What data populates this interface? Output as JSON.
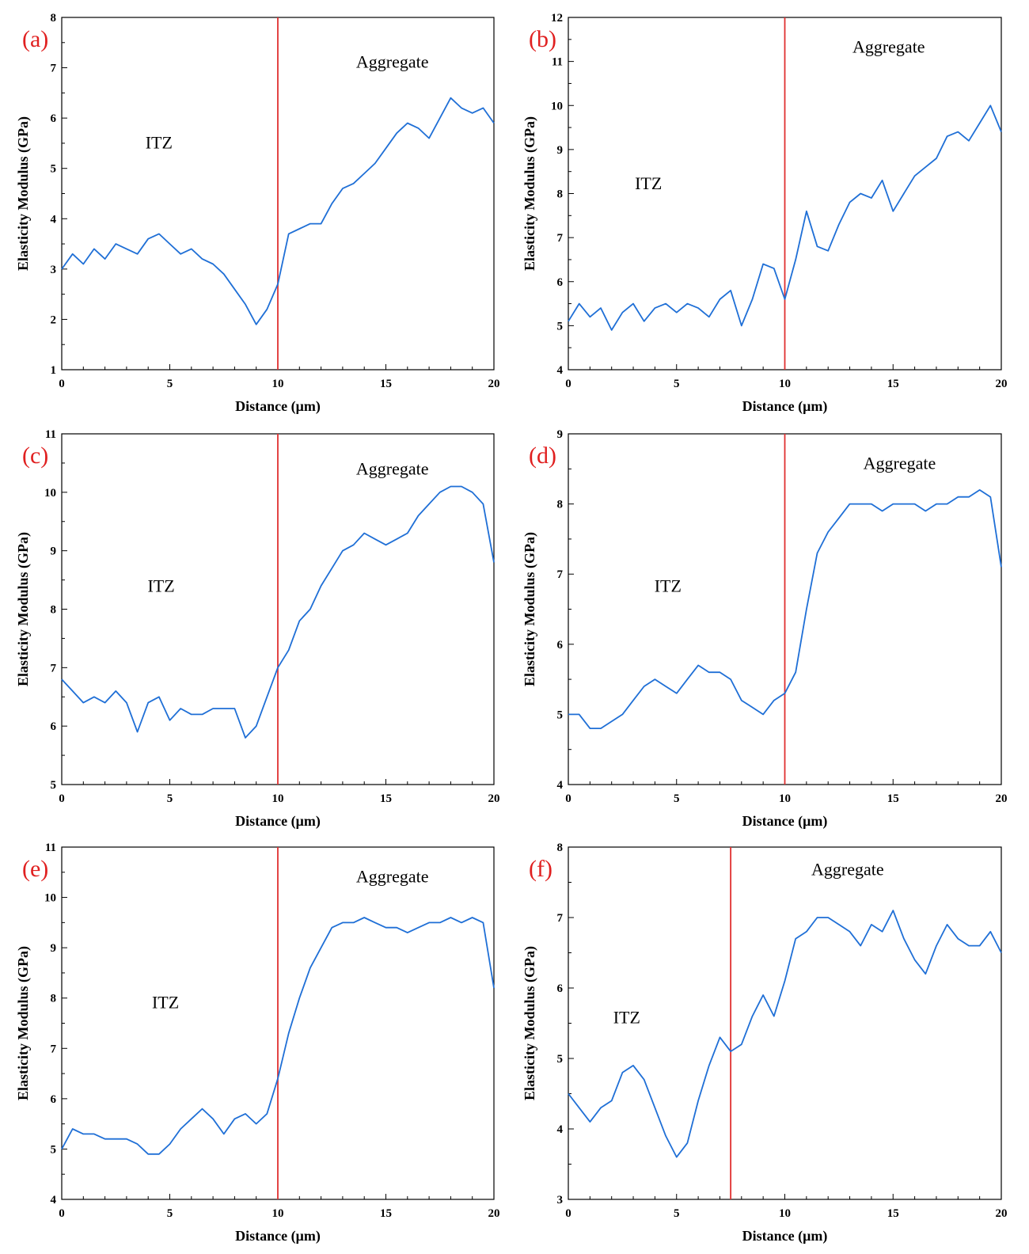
{
  "figure": {
    "line_color": "#1f6fd6",
    "boundary_color": "#e03030",
    "panel_label_color": "#e02020",
    "axis_color": "#000000"
  },
  "chart_data": [
    {
      "type": "line",
      "panel_label": "(a)",
      "xlabel": "Distance (μm)",
      "ylabel": "Elasticity Modulus (GPa)",
      "xlim": [
        0,
        20
      ],
      "ylim": [
        1,
        8
      ],
      "xticks": [
        0,
        5,
        10,
        15,
        20
      ],
      "yticks": [
        1,
        2,
        3,
        4,
        5,
        6,
        7,
        8
      ],
      "boundary_x": 10,
      "annotations": [
        {
          "text": "ITZ",
          "x": 4.5,
          "y": 5.4
        },
        {
          "text": "Aggregate",
          "x": 15.3,
          "y": 7.0
        }
      ],
      "series": [
        {
          "x": [
            0,
            0.5,
            1,
            1.5,
            2,
            2.5,
            3,
            3.5,
            4,
            4.5,
            5,
            5.5,
            6,
            6.5,
            7,
            7.5,
            8,
            8.5,
            9,
            9.5,
            10,
            10.5,
            11,
            11.5,
            12,
            12.5,
            13,
            13.5,
            14,
            14.5,
            15,
            15.5,
            16,
            16.5,
            17,
            17.5,
            18,
            18.5,
            19,
            19.5,
            20
          ],
          "values": [
            3.0,
            3.3,
            3.1,
            3.4,
            3.2,
            3.5,
            3.4,
            3.3,
            3.6,
            3.7,
            3.5,
            3.3,
            3.4,
            3.2,
            3.1,
            2.9,
            2.6,
            2.3,
            1.9,
            2.2,
            2.7,
            3.7,
            3.8,
            3.9,
            3.9,
            4.3,
            4.6,
            4.7,
            4.9,
            5.1,
            5.4,
            5.7,
            5.9,
            5.8,
            5.6,
            6.0,
            6.4,
            6.2,
            6.1,
            6.2,
            5.9
          ]
        }
      ]
    },
    {
      "type": "line",
      "panel_label": "(b)",
      "xlabel": "Distance (μm)",
      "ylabel": "Elasticity Modulus (GPa)",
      "xlim": [
        0,
        20
      ],
      "ylim": [
        4,
        12
      ],
      "xticks": [
        0,
        5,
        10,
        15,
        20
      ],
      "yticks": [
        4,
        5,
        6,
        7,
        8,
        9,
        10,
        11,
        12
      ],
      "boundary_x": 10,
      "annotations": [
        {
          "text": "ITZ",
          "x": 3.7,
          "y": 8.1
        },
        {
          "text": "Aggregate",
          "x": 14.8,
          "y": 11.2
        }
      ],
      "series": [
        {
          "x": [
            0,
            0.5,
            1,
            1.5,
            2,
            2.5,
            3,
            3.5,
            4,
            4.5,
            5,
            5.5,
            6,
            6.5,
            7,
            7.5,
            8,
            8.5,
            9,
            9.5,
            10,
            10.5,
            11,
            11.5,
            12,
            12.5,
            13,
            13.5,
            14,
            14.5,
            15,
            15.5,
            16,
            16.5,
            17,
            17.5,
            18,
            18.5,
            19,
            19.5,
            20
          ],
          "values": [
            5.1,
            5.5,
            5.2,
            5.4,
            4.9,
            5.3,
            5.5,
            5.1,
            5.4,
            5.5,
            5.3,
            5.5,
            5.4,
            5.2,
            5.6,
            5.8,
            5.0,
            5.6,
            6.4,
            6.3,
            5.6,
            6.5,
            7.6,
            6.8,
            6.7,
            7.3,
            7.8,
            8.0,
            7.9,
            8.3,
            7.6,
            8.0,
            8.4,
            8.6,
            8.8,
            9.3,
            9.4,
            9.2,
            9.6,
            10.0,
            9.4
          ]
        }
      ]
    },
    {
      "type": "line",
      "panel_label": "(c)",
      "xlabel": "Distance (μm)",
      "ylabel": "Elasticity Modulus (GPa)",
      "xlim": [
        0,
        20
      ],
      "ylim": [
        5,
        11
      ],
      "xticks": [
        0,
        5,
        10,
        15,
        20
      ],
      "yticks": [
        5,
        6,
        7,
        8,
        9,
        10,
        11
      ],
      "boundary_x": 10,
      "annotations": [
        {
          "text": "ITZ",
          "x": 4.6,
          "y": 8.3
        },
        {
          "text": "Aggregate",
          "x": 15.3,
          "y": 10.3
        }
      ],
      "series": [
        {
          "x": [
            0,
            0.5,
            1,
            1.5,
            2,
            2.5,
            3,
            3.5,
            4,
            4.5,
            5,
            5.5,
            6,
            6.5,
            7,
            7.5,
            8,
            8.5,
            9,
            9.5,
            10,
            10.5,
            11,
            11.5,
            12,
            12.5,
            13,
            13.5,
            14,
            14.5,
            15,
            15.5,
            16,
            16.5,
            17,
            17.5,
            18,
            18.5,
            19,
            19.5,
            20
          ],
          "values": [
            6.8,
            6.6,
            6.4,
            6.5,
            6.4,
            6.6,
            6.4,
            5.9,
            6.4,
            6.5,
            6.1,
            6.3,
            6.2,
            6.2,
            6.3,
            6.3,
            6.3,
            5.8,
            6.0,
            6.5,
            7.0,
            7.3,
            7.8,
            8.0,
            8.4,
            8.7,
            9.0,
            9.1,
            9.3,
            9.2,
            9.1,
            9.2,
            9.3,
            9.6,
            9.8,
            10.0,
            10.1,
            10.1,
            10.0,
            9.8,
            8.8
          ]
        }
      ]
    },
    {
      "type": "line",
      "panel_label": "(d)",
      "xlabel": "Distance (μm)",
      "ylabel": "Elasticity Modulus (GPa)",
      "xlim": [
        0,
        20
      ],
      "ylim": [
        4,
        9
      ],
      "xticks": [
        0,
        5,
        10,
        15,
        20
      ],
      "yticks": [
        4,
        5,
        6,
        7,
        8,
        9
      ],
      "boundary_x": 10,
      "annotations": [
        {
          "text": "ITZ",
          "x": 4.6,
          "y": 6.75
        },
        {
          "text": "Aggregate",
          "x": 15.3,
          "y": 8.5
        }
      ],
      "series": [
        {
          "x": [
            0,
            0.5,
            1,
            1.5,
            2,
            2.5,
            3,
            3.5,
            4,
            4.5,
            5,
            5.5,
            6,
            6.5,
            7,
            7.5,
            8,
            8.5,
            9,
            9.5,
            10,
            10.5,
            11,
            11.5,
            12,
            12.5,
            13,
            13.5,
            14,
            14.5,
            15,
            15.5,
            16,
            16.5,
            17,
            17.5,
            18,
            18.5,
            19,
            19.5,
            20
          ],
          "values": [
            5.0,
            5.0,
            4.8,
            4.8,
            4.9,
            5.0,
            5.2,
            5.4,
            5.5,
            5.4,
            5.3,
            5.5,
            5.7,
            5.6,
            5.6,
            5.5,
            5.2,
            5.1,
            5.0,
            5.2,
            5.3,
            5.6,
            6.5,
            7.3,
            7.6,
            7.8,
            8.0,
            8.0,
            8.0,
            7.9,
            8.0,
            8.0,
            8.0,
            7.9,
            8.0,
            8.0,
            8.1,
            8.1,
            8.2,
            8.1,
            7.1
          ]
        }
      ]
    },
    {
      "type": "line",
      "panel_label": "(e)",
      "xlabel": "Distance (μm)",
      "ylabel": "Elasticity Modulus (GPa)",
      "xlim": [
        0,
        20
      ],
      "ylim": [
        4,
        11
      ],
      "xticks": [
        0,
        5,
        10,
        15,
        20
      ],
      "yticks": [
        4,
        5,
        6,
        7,
        8,
        9,
        10,
        11
      ],
      "boundary_x": 10,
      "annotations": [
        {
          "text": "ITZ",
          "x": 4.8,
          "y": 7.8
        },
        {
          "text": "Aggregate",
          "x": 15.3,
          "y": 10.3
        }
      ],
      "series": [
        {
          "x": [
            0,
            0.5,
            1,
            1.5,
            2,
            2.5,
            3,
            3.5,
            4,
            4.5,
            5,
            5.5,
            6,
            6.5,
            7,
            7.5,
            8,
            8.5,
            9,
            9.5,
            10,
            10.5,
            11,
            11.5,
            12,
            12.5,
            13,
            13.5,
            14,
            14.5,
            15,
            15.5,
            16,
            16.5,
            17,
            17.5,
            18,
            18.5,
            19,
            19.5,
            20
          ],
          "values": [
            5.0,
            5.4,
            5.3,
            5.3,
            5.2,
            5.2,
            5.2,
            5.1,
            4.9,
            4.9,
            5.1,
            5.4,
            5.6,
            5.8,
            5.6,
            5.3,
            5.6,
            5.7,
            5.5,
            5.7,
            6.4,
            7.3,
            8.0,
            8.6,
            9.0,
            9.4,
            9.5,
            9.5,
            9.6,
            9.5,
            9.4,
            9.4,
            9.3,
            9.4,
            9.5,
            9.5,
            9.6,
            9.5,
            9.6,
            9.5,
            8.2
          ]
        }
      ]
    },
    {
      "type": "line",
      "panel_label": "(f)",
      "xlabel": "Distance (μm)",
      "ylabel": "Elasticity Modulus (GPa)",
      "xlim": [
        0,
        20
      ],
      "ylim": [
        3,
        8
      ],
      "xticks": [
        0,
        5,
        10,
        15,
        20
      ],
      "yticks": [
        3,
        4,
        5,
        6,
        7,
        8
      ],
      "boundary_x": 7.5,
      "annotations": [
        {
          "text": "ITZ",
          "x": 2.7,
          "y": 5.5
        },
        {
          "text": "Aggregate",
          "x": 12.9,
          "y": 7.6
        }
      ],
      "series": [
        {
          "x": [
            0,
            0.5,
            1,
            1.5,
            2,
            2.5,
            3,
            3.5,
            4,
            4.5,
            5,
            5.5,
            6,
            6.5,
            7,
            7.5,
            8,
            8.5,
            9,
            9.5,
            10,
            10.5,
            11,
            11.5,
            12,
            12.5,
            13,
            13.5,
            14,
            14.5,
            15,
            15.5,
            16,
            16.5,
            17,
            17.5,
            18,
            18.5,
            19,
            19.5,
            20
          ],
          "values": [
            4.5,
            4.3,
            4.1,
            4.3,
            4.4,
            4.8,
            4.9,
            4.7,
            4.3,
            3.9,
            3.6,
            3.8,
            4.4,
            4.9,
            5.3,
            5.1,
            5.2,
            5.6,
            5.9,
            5.6,
            6.1,
            6.7,
            6.8,
            7.0,
            7.0,
            6.9,
            6.8,
            6.6,
            6.9,
            6.8,
            7.1,
            6.7,
            6.4,
            6.2,
            6.6,
            6.9,
            6.7,
            6.6,
            6.6,
            6.8,
            6.5
          ]
        }
      ]
    }
  ]
}
